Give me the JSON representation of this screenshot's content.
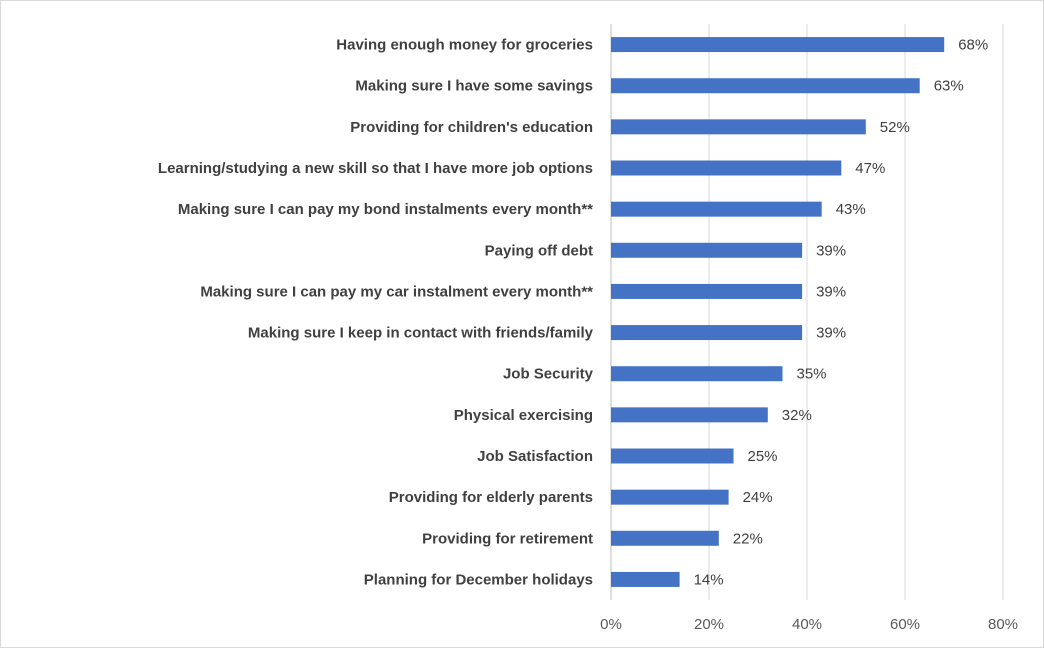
{
  "chart_data": {
    "type": "bar",
    "orientation": "horizontal",
    "categories": [
      "Having enough money for groceries",
      "Making sure I have some savings",
      "Providing for children's education",
      "Learning/studying a new skill so that I have more job options",
      "Making sure I can pay my bond instalments every month**",
      "Paying off debt",
      "Making sure I can pay my car instalment every month**",
      "Making sure I keep in contact with friends/family",
      "Job Security",
      "Physical exercising",
      "Job Satisfaction",
      "Providing for elderly parents",
      "Providing for retirement",
      "Planning for December holidays"
    ],
    "values": [
      68,
      63,
      52,
      47,
      43,
      39,
      39,
      39,
      35,
      32,
      25,
      24,
      22,
      14
    ],
    "data_labels": [
      "68%",
      "63%",
      "52%",
      "47%",
      "43%",
      "39%",
      "39%",
      "39%",
      "35%",
      "32%",
      "25%",
      "24%",
      "22%",
      "14%"
    ],
    "x_ticks": [
      "0%",
      "20%",
      "40%",
      "60%",
      "80%"
    ],
    "xlim": [
      0,
      80
    ],
    "title": "",
    "xlabel": "",
    "ylabel": "",
    "grid": true,
    "legend": "none",
    "bar_color": "#4472c4"
  }
}
